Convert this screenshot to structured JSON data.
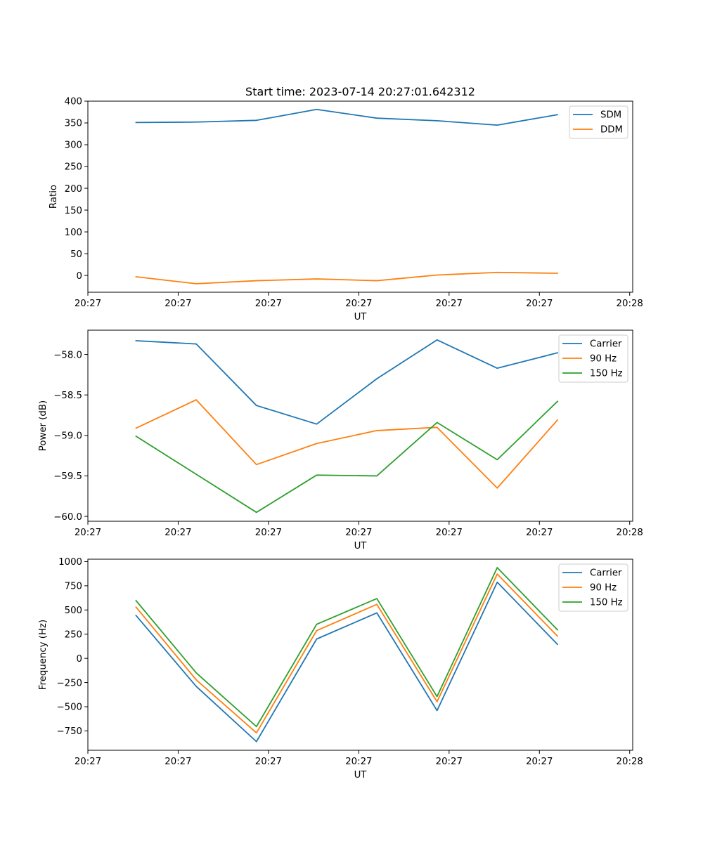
{
  "chart_data": [
    {
      "type": "line",
      "title": "Start time: 2023-07-14 20:27:01.642312",
      "xlabel": "UT",
      "ylabel": "Ratio",
      "x": [
        1,
        2,
        3,
        4,
        5,
        6,
        7,
        8
      ],
      "xlim": [
        0.2,
        9.25
      ],
      "x_ticks": [
        0.2,
        1.7,
        3.2,
        4.7,
        6.2,
        7.7,
        9.2
      ],
      "x_tick_labels": [
        "20:27",
        "20:27",
        "20:27",
        "20:27",
        "20:27",
        "20:27",
        "20:28"
      ],
      "ylim": [
        -38.5,
        400
      ],
      "y_ticks": [
        0,
        50,
        100,
        150,
        200,
        250,
        300,
        350,
        400
      ],
      "y_tick_labels": [
        "0",
        "50",
        "100",
        "150",
        "200",
        "250",
        "300",
        "350",
        "400"
      ],
      "legend_position": "top-right",
      "series": [
        {
          "name": "SDM",
          "color": "#1f77b4",
          "values": [
            351,
            352,
            356,
            381,
            361,
            355,
            345,
            369
          ]
        },
        {
          "name": "DDM",
          "color": "#ff7f0e",
          "values": [
            -3,
            -19,
            -12,
            -8,
            -12,
            1,
            7,
            5
          ]
        }
      ]
    },
    {
      "type": "line",
      "xlabel": "UT",
      "ylabel": "Power (dB)",
      "x": [
        1,
        2,
        3,
        4,
        5,
        6,
        7,
        8
      ],
      "xlim": [
        0.2,
        9.25
      ],
      "x_ticks": [
        0.2,
        1.7,
        3.2,
        4.7,
        6.2,
        7.7,
        9.2
      ],
      "x_tick_labels": [
        "20:27",
        "20:27",
        "20:27",
        "20:27",
        "20:27",
        "20:27",
        "20:28"
      ],
      "ylim": [
        -60.06,
        -57.7
      ],
      "y_ticks": [
        -58.0,
        -58.5,
        -59.0,
        -59.5,
        -60.0
      ],
      "y_tick_labels": [
        "−58.0",
        "−58.5",
        "−59.0",
        "−59.5",
        "−60.0"
      ],
      "legend_position": "top-right",
      "series": [
        {
          "name": "Carrier",
          "color": "#1f77b4",
          "values": [
            -57.83,
            -57.87,
            -58.63,
            -58.86,
            -58.3,
            -57.82,
            -58.17,
            -57.98
          ]
        },
        {
          "name": "90 Hz",
          "color": "#ff7f0e",
          "values": [
            -58.91,
            -58.56,
            -59.36,
            -59.1,
            -58.94,
            -58.9,
            -59.65,
            -58.81
          ]
        },
        {
          "name": "150 Hz",
          "color": "#2ca02c",
          "values": [
            -59.01,
            -59.48,
            -59.95,
            -59.49,
            -59.5,
            -58.84,
            -59.3,
            -58.58
          ]
        }
      ]
    },
    {
      "type": "line",
      "xlabel": "UT",
      "ylabel": "Frequency (Hz)",
      "x": [
        1,
        2,
        3,
        4,
        5,
        6,
        7,
        8
      ],
      "xlim": [
        0.2,
        9.25
      ],
      "x_ticks": [
        0.2,
        1.7,
        3.2,
        4.7,
        6.2,
        7.7,
        9.2
      ],
      "x_tick_labels": [
        "20:27",
        "20:27",
        "20:27",
        "20:27",
        "20:27",
        "20:27",
        "20:28"
      ],
      "ylim": [
        -950,
        1025
      ],
      "y_ticks": [
        1000,
        750,
        500,
        250,
        0,
        -250,
        -500,
        -750
      ],
      "y_tick_labels": [
        "1000",
        "750",
        "500",
        "250",
        "0",
        "−250",
        "−500",
        "−750"
      ],
      "legend_position": "top-right",
      "series": [
        {
          "name": "Carrier",
          "color": "#1f77b4",
          "values": [
            443,
            -290,
            -860,
            200,
            470,
            -540,
            787,
            145
          ]
        },
        {
          "name": "90 Hz",
          "color": "#ff7f0e",
          "values": [
            530,
            -222,
            -770,
            287,
            558,
            -448,
            872,
            230
          ]
        },
        {
          "name": "150 Hz",
          "color": "#2ca02c",
          "values": [
            597,
            -150,
            -705,
            352,
            618,
            -395,
            938,
            295
          ]
        }
      ]
    }
  ]
}
